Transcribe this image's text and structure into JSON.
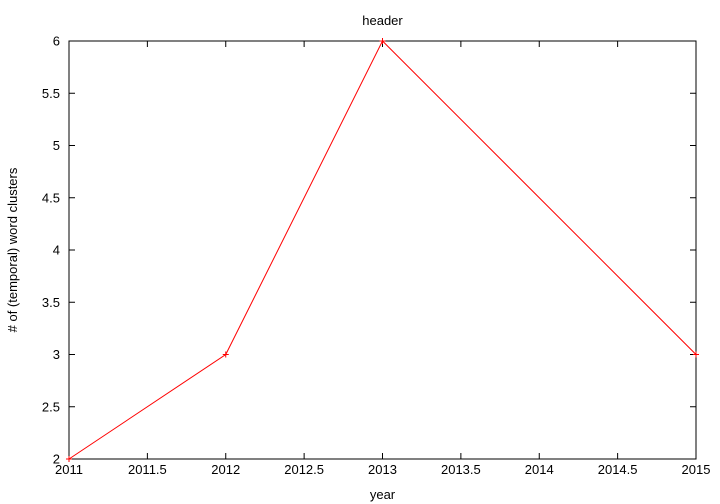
{
  "chart_data": {
    "type": "line",
    "title": "header",
    "xlabel": "year",
    "ylabel": "# of (temporal) word clusters",
    "xlim": [
      2011,
      2015
    ],
    "ylim": [
      2,
      6
    ],
    "x_ticks": [
      2011,
      2011.5,
      2012,
      2012.5,
      2013,
      2013.5,
      2014,
      2014.5,
      2015
    ],
    "y_ticks": [
      2,
      2.5,
      3,
      3.5,
      4,
      4.5,
      5,
      5.5,
      6
    ],
    "grid": false,
    "legend": "none",
    "series": [
      {
        "color": "#ff0000",
        "marker": "plus",
        "x": [
          2011,
          2012,
          2013,
          2015
        ],
        "y": [
          2,
          3,
          6,
          3
        ]
      }
    ]
  }
}
